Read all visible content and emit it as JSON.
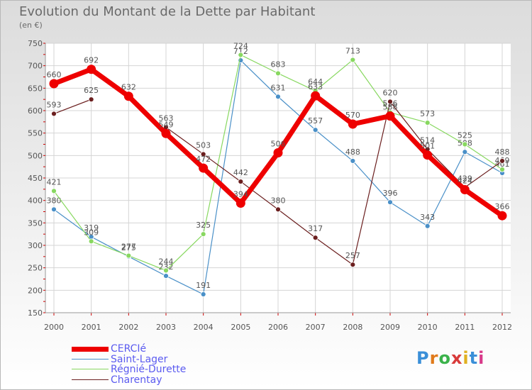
{
  "header": {
    "title": "Evolution du Montant de la Dette par Habitant",
    "unit": "(en €)"
  },
  "logo": {
    "text": "Proxiti",
    "colors": [
      "#3a8fd8",
      "#e07a1a",
      "#3ab24a",
      "#d83a3a",
      "#e0b020",
      "#3a8fd8",
      "#d83a8a"
    ]
  },
  "chart_data": {
    "type": "line",
    "title": "Evolution du Montant de la Dette par Habitant",
    "ylabel": "(en €)",
    "xlabel": "",
    "ylim": [
      150,
      750
    ],
    "yticks": [
      150,
      200,
      250,
      300,
      350,
      400,
      450,
      500,
      550,
      600,
      650,
      700,
      750
    ],
    "categories": [
      "2000",
      "2001",
      "2002",
      "2003",
      "2004",
      "2005",
      "2006",
      "2007",
      "2008",
      "2009",
      "2010",
      "2011",
      "2012"
    ],
    "series": [
      {
        "name": "CERCIé",
        "color": "#ee0000",
        "values": [
          660,
          692,
          632,
          549,
          472,
          394,
          506,
          633,
          570,
          588,
          501,
          424,
          366
        ]
      },
      {
        "name": "Saint-Lager",
        "color": "#4a90c8",
        "values": [
          380,
          319,
          275,
          232,
          191,
          712,
          631,
          557,
          488,
          396,
          343,
          508,
          461
        ]
      },
      {
        "name": "Régnié-Durette",
        "color": "#88d860",
        "values": [
          421,
          309,
          277,
          244,
          325,
          724,
          683,
          644,
          713,
          596,
          573,
          525,
          469
        ]
      },
      {
        "name": "Charentay",
        "color": "#6b1f1f",
        "values": [
          593,
          625,
          null,
          563,
          503,
          442,
          380,
          317,
          257,
          620,
          514,
          429,
          488
        ]
      }
    ]
  }
}
